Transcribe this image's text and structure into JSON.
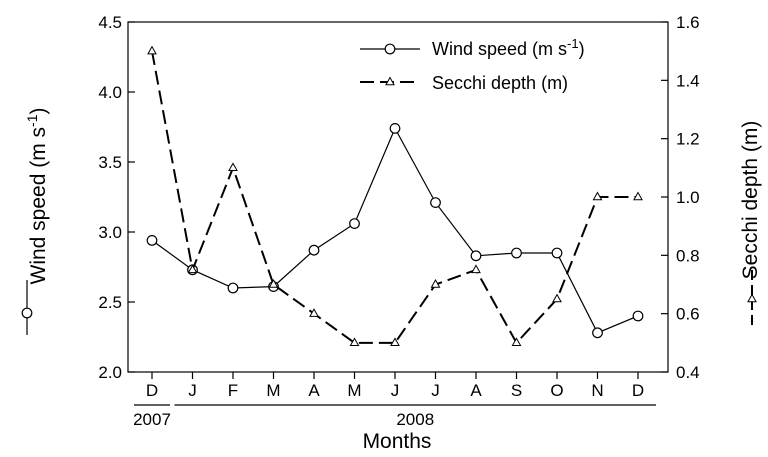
{
  "chart_data": {
    "type": "line",
    "categories": [
      "D",
      "J",
      "F",
      "M",
      "A",
      "M",
      "J",
      "J",
      "A",
      "S",
      "O",
      "N",
      "D"
    ],
    "year_groups": [
      {
        "label": "2007",
        "from": 0,
        "to": 0
      },
      {
        "label": "2008",
        "from": 1,
        "to": 12
      }
    ],
    "xlabel": "Months",
    "ylabel_left": "Wind speed (m s-1)",
    "ylabel_left_main": "Wind speed (m s",
    "ylabel_left_sup": "-1",
    "ylabel_left_close": ")",
    "ylabel_right": "Secchi depth (m)",
    "ylim_left": [
      2.0,
      4.5
    ],
    "yticks_left": [
      "2.0",
      "2.5",
      "3.0",
      "3.5",
      "4.0",
      "4.5"
    ],
    "ylim_right": [
      0.4,
      1.6
    ],
    "yticks_right": [
      "0.4",
      "0.6",
      "0.8",
      "1.0",
      "1.2",
      "1.4",
      "1.6"
    ],
    "series": [
      {
        "name": "Wind speed (m s-1)",
        "legend_main": "Wind speed (m s",
        "legend_sup": "-1",
        "legend_close": ")",
        "axis": "left",
        "line_style": "solid",
        "marker": "circle",
        "values": [
          2.94,
          2.73,
          2.6,
          2.61,
          2.87,
          3.06,
          3.74,
          3.21,
          2.83,
          2.85,
          2.85,
          2.28,
          2.4
        ]
      },
      {
        "name": "Secchi depth (m)",
        "axis": "right",
        "line_style": "dashed",
        "marker": "triangle",
        "values": [
          1.5,
          0.75,
          1.1,
          0.7,
          0.6,
          0.5,
          0.5,
          0.7,
          0.75,
          0.5,
          0.65,
          1.0,
          1.0
        ]
      }
    ],
    "legend_position": "top-right",
    "grid": false
  }
}
